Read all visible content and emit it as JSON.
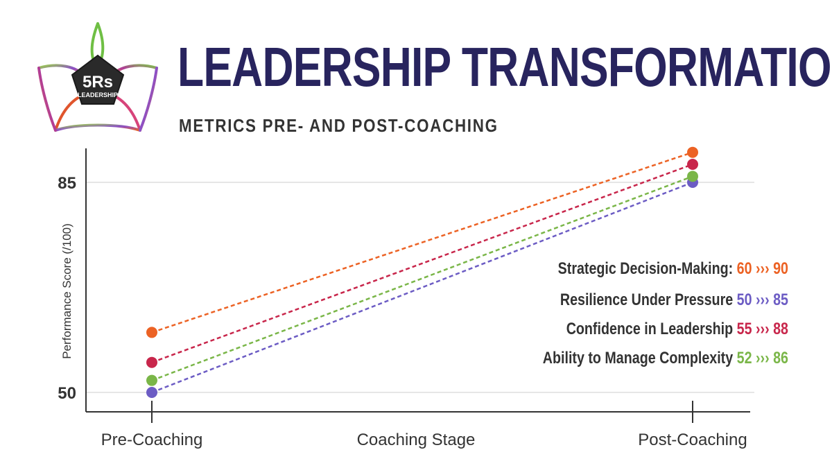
{
  "header": {
    "logo_text": "5Rs",
    "logo_subtext": "LEADERSHIP",
    "title": "LEADERSHIP TRANSFORMATION",
    "subtitle": "METRICS PRE- AND POST-COACHING"
  },
  "chart_data": {
    "type": "line",
    "categories": [
      "Pre-Coaching",
      "Post-Coaching"
    ],
    "xlabel": "Coaching Stage",
    "ylabel": "Performance Score (/100)",
    "y_ticks": [
      50,
      85
    ],
    "ylim": [
      47,
      90
    ],
    "grid": true,
    "legend_position": "right",
    "arrow_symbol": "›››",
    "series": [
      {
        "name": "Strategic Decision-Making:",
        "values": [
          60,
          90
        ],
        "color": "#ec6224"
      },
      {
        "name": "Resilience Under Pressure",
        "values": [
          50,
          85
        ],
        "color": "#6c5cc4"
      },
      {
        "name": "Confidence in Leadership",
        "values": [
          55,
          88
        ],
        "color": "#c8264b"
      },
      {
        "name": "Ability to Manage Complexity",
        "values": [
          52,
          86
        ],
        "color": "#7ab648"
      }
    ]
  }
}
